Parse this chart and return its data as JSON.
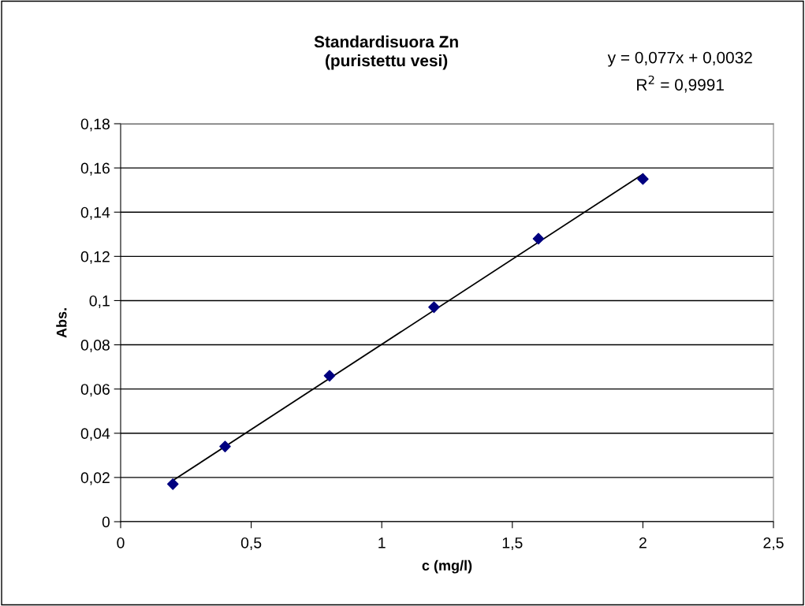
{
  "chart_data": {
    "type": "scatter",
    "title": "Standardisuora Zn\n(puristettu vesi)",
    "xlabel": "c (mg/l)",
    "ylabel": "Abs.",
    "annotations": [
      "y = 0,077x + 0,0032",
      "R$^{2}$ = 0,9991"
    ],
    "series": [
      {
        "color": "#000080",
        "marker": "diamond",
        "x": [
          0.2,
          0.4,
          0.8,
          1.2,
          1.6,
          2.0
        ],
        "values": [
          0.017,
          0.034,
          0.066,
          0.097,
          0.128,
          0.155
        ]
      },
      {
        "type": "line",
        "color": "#000000",
        "marker": "none",
        "x": [
          0.2,
          2.0
        ],
        "values": [
          0.0186,
          0.1572
        ]
      }
    ],
    "xlim": [
      0,
      2.5
    ],
    "xticks": [
      0,
      {
        "value": 0.5,
        "label": "0,5"
      },
      1,
      {
        "value": 1.5,
        "label": "1,5"
      },
      2,
      {
        "value": 2.5,
        "label": "2,5"
      }
    ],
    "ylim": [
      0,
      0.18
    ],
    "yticks": [
      0,
      {
        "value": 0.02,
        "label": "0,02"
      },
      {
        "value": 0.04,
        "label": "0,04"
      },
      {
        "value": 0.06,
        "label": "0,06"
      },
      {
        "value": 0.08,
        "label": "0,08"
      },
      {
        "value": 0.1,
        "label": "0,1"
      },
      {
        "value": 0.12,
        "label": "0,12"
      },
      {
        "value": 0.14,
        "label": "0,14"
      },
      {
        "value": 0.16,
        "label": "0,16"
      },
      {
        "value": 0.18,
        "label": "0,18"
      }
    ],
    "grid": "y"
  }
}
